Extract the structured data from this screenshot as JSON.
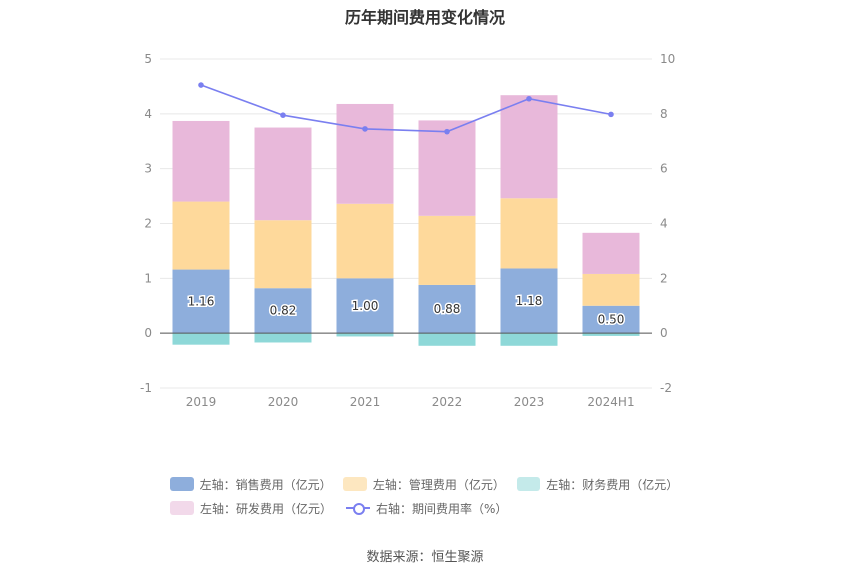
{
  "chart_data": {
    "type": "bar",
    "title": "历年期间费用变化情况",
    "categories": [
      "2019",
      "2020",
      "2021",
      "2022",
      "2023",
      "2024H1"
    ],
    "left_axis": {
      "ylim": [
        -1,
        5
      ],
      "ticks": [
        "-1",
        "0",
        "1",
        "2",
        "3",
        "4",
        "5"
      ]
    },
    "right_axis": {
      "ylim": [
        -2,
        10
      ],
      "ticks": [
        "-2",
        "0",
        "2",
        "4",
        "6",
        "8",
        "10"
      ]
    },
    "series": [
      {
        "name": "左轴：销售费用（亿元）",
        "type": "bar",
        "stack": true,
        "color": "#8eaedc",
        "values": [
          1.16,
          0.82,
          1.0,
          0.88,
          1.18,
          0.5
        ],
        "labels": [
          "1.16",
          "0.82",
          "1.00",
          "0.88",
          "1.18",
          "0.50"
        ]
      },
      {
        "name": "左轴：管理费用（亿元）",
        "type": "bar",
        "stack": true,
        "color": "#fed99b",
        "values": [
          1.24,
          1.24,
          1.36,
          1.26,
          1.28,
          0.58
        ]
      },
      {
        "name": "左轴：财务费用（亿元）",
        "type": "bar",
        "stack": true,
        "color": "#8ed8d8",
        "values": [
          -0.21,
          -0.17,
          -0.06,
          -0.23,
          -0.23,
          -0.05
        ]
      },
      {
        "name": "左轴：研发费用（亿元）",
        "type": "bar",
        "stack": true,
        "color": "#e8b8da",
        "values": [
          1.47,
          1.69,
          1.82,
          1.74,
          1.88,
          0.75
        ]
      },
      {
        "name": "右轴：期间费用率（%）",
        "type": "line",
        "axis": "right",
        "color": "#7a7ff0",
        "values": [
          9.05,
          7.95,
          7.45,
          7.35,
          8.55,
          7.98
        ]
      }
    ],
    "legend_position": "bottom",
    "grid": true
  },
  "source": "数据来源：恒生聚源"
}
